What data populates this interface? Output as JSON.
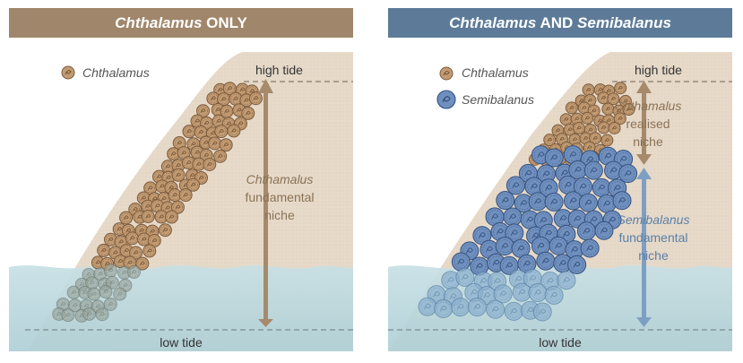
{
  "panels": [
    {
      "title_species": "Chthalamus",
      "title_rest": " ONLY",
      "legend": [
        "Chthalamus"
      ],
      "high_tide": "high tide",
      "low_tide": "low tide",
      "niche_species": "Chthamalus",
      "niche_lines": [
        "fundamental",
        "niche"
      ]
    },
    {
      "title_species1": "Chthalamus",
      "title_mid": " AND ",
      "title_species2": "Semibalanus",
      "legend": [
        "Chthalamus",
        "Semibalanus"
      ],
      "high_tide": "high tide",
      "low_tide": "low tide",
      "upper_niche_species": "Chthamalus",
      "upper_niche_lines": [
        "realised",
        "niche"
      ],
      "lower_niche_species": "Semibalanus",
      "lower_niche_lines": [
        "fundamental",
        "niche"
      ]
    }
  ],
  "colors": {
    "left_header": "#a0866a",
    "right_header": "#5d7b98",
    "rock": "#e6d9c8",
    "water": "#bcd9df",
    "chthamalus": "#c29b72",
    "semibalanus": "#6f8fbe",
    "niche_brown": "#a68a6c",
    "niche_blue": "#7d9fc4"
  }
}
